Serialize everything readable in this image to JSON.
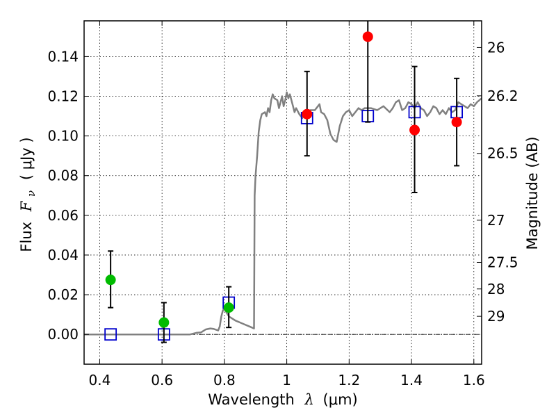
{
  "chart_data": {
    "type": "scatter",
    "xlabel": "Wavelength  λ (μm)",
    "ylabel": "Flux  F_ν  ( μJy )",
    "ylabel_parts": {
      "prefix": "Flux",
      "symbol": "F",
      "subscript": "ν",
      "units": "( μJy )"
    },
    "xlabel_parts": {
      "prefix": "Wavelength",
      "symbol": "λ",
      "units": "(μm)"
    },
    "y2label": "Magnitude (AB)",
    "xlim": [
      0.35,
      1.625
    ],
    "ylim": [
      -0.015,
      0.158
    ],
    "x_ticks": [
      {
        "value": 0.4,
        "label": "0.4"
      },
      {
        "value": 0.6,
        "label": "0.6"
      },
      {
        "value": 0.8,
        "label": "0.8"
      },
      {
        "value": 1.0,
        "label": "1"
      },
      {
        "value": 1.2,
        "label": "1.2"
      },
      {
        "value": 1.4,
        "label": "1.4"
      },
      {
        "value": 1.6,
        "label": "1.6"
      }
    ],
    "y_ticks": [
      {
        "value": 0.0,
        "label": "0.00"
      },
      {
        "value": 0.02,
        "label": "0.02"
      },
      {
        "value": 0.04,
        "label": "0.04"
      },
      {
        "value": 0.06,
        "label": "0.06"
      },
      {
        "value": 0.08,
        "label": "0.08"
      },
      {
        "value": 0.1,
        "label": "0.10"
      },
      {
        "value": 0.12,
        "label": "0.12"
      },
      {
        "value": 0.14,
        "label": "0.14"
      }
    ],
    "y2_ticks": [
      {
        "mag": 26,
        "label": "26"
      },
      {
        "mag": 26.2,
        "label": "26.2"
      },
      {
        "mag": 26.5,
        "label": "26.5"
      },
      {
        "mag": 27,
        "label": "27"
      },
      {
        "mag": 27.5,
        "label": "27.5"
      },
      {
        "mag": 28,
        "label": "28"
      },
      {
        "mag": 29,
        "label": "29"
      }
    ],
    "grid": true,
    "zero_line": true,
    "colors": {
      "sed": "#808080",
      "model": "#0000cc",
      "optical": "#00bb00",
      "nir": "#ff0000",
      "errorbar": "#000000"
    },
    "series": [
      {
        "kind": "line",
        "points": [
          [
            0.35,
            0.0
          ],
          [
            0.65,
            0.0
          ],
          [
            0.69,
            0.0
          ],
          [
            0.71,
            0.0008
          ],
          [
            0.725,
            0.001
          ],
          [
            0.74,
            0.0025
          ],
          [
            0.755,
            0.003
          ],
          [
            0.765,
            0.0028
          ],
          [
            0.78,
            0.002
          ],
          [
            0.785,
            0.004
          ],
          [
            0.79,
            0.009
          ],
          [
            0.795,
            0.012
          ],
          [
            0.8,
            0.013
          ],
          [
            0.807,
            0.011
          ],
          [
            0.815,
            0.009
          ],
          [
            0.825,
            0.008
          ],
          [
            0.835,
            0.007
          ],
          [
            0.85,
            0.006
          ],
          [
            0.865,
            0.005
          ],
          [
            0.88,
            0.004
          ],
          [
            0.895,
            0.003
          ],
          [
            0.897,
            0.07
          ],
          [
            0.9,
            0.08
          ],
          [
            0.905,
            0.09
          ],
          [
            0.91,
            0.102
          ],
          [
            0.915,
            0.108
          ],
          [
            0.92,
            0.111
          ],
          [
            0.93,
            0.112
          ],
          [
            0.935,
            0.11
          ],
          [
            0.94,
            0.114
          ],
          [
            0.945,
            0.112
          ],
          [
            0.95,
            0.118
          ],
          [
            0.955,
            0.121
          ],
          [
            0.96,
            0.119
          ],
          [
            0.97,
            0.118
          ],
          [
            0.975,
            0.114
          ],
          [
            0.98,
            0.117
          ],
          [
            0.985,
            0.12
          ],
          [
            0.99,
            0.115
          ],
          [
            0.995,
            0.118
          ],
          [
            1.0,
            0.122
          ],
          [
            1.005,
            0.119
          ],
          [
            1.01,
            0.121
          ],
          [
            1.02,
            0.115
          ],
          [
            1.025,
            0.112
          ],
          [
            1.03,
            0.114
          ],
          [
            1.04,
            0.111
          ],
          [
            1.05,
            0.109
          ],
          [
            1.06,
            0.112
          ],
          [
            1.075,
            0.113
          ],
          [
            1.09,
            0.113
          ],
          [
            1.1,
            0.115
          ],
          [
            1.105,
            0.116
          ],
          [
            1.11,
            0.112
          ],
          [
            1.12,
            0.111
          ],
          [
            1.13,
            0.108
          ],
          [
            1.14,
            0.101
          ],
          [
            1.15,
            0.098
          ],
          [
            1.16,
            0.097
          ],
          [
            1.17,
            0.105
          ],
          [
            1.18,
            0.11
          ],
          [
            1.19,
            0.112
          ],
          [
            1.2,
            0.113
          ],
          [
            1.21,
            0.11
          ],
          [
            1.22,
            0.112
          ],
          [
            1.23,
            0.114
          ],
          [
            1.24,
            0.113
          ],
          [
            1.25,
            0.114
          ],
          [
            1.27,
            0.114
          ],
          [
            1.29,
            0.113
          ],
          [
            1.31,
            0.115
          ],
          [
            1.33,
            0.112
          ],
          [
            1.34,
            0.114
          ],
          [
            1.35,
            0.117
          ],
          [
            1.36,
            0.118
          ],
          [
            1.37,
            0.113
          ],
          [
            1.38,
            0.114
          ],
          [
            1.39,
            0.117
          ],
          [
            1.4,
            0.116
          ],
          [
            1.41,
            0.114
          ],
          [
            1.42,
            0.117
          ],
          [
            1.43,
            0.114
          ],
          [
            1.44,
            0.113
          ],
          [
            1.45,
            0.11
          ],
          [
            1.46,
            0.112
          ],
          [
            1.47,
            0.115
          ],
          [
            1.48,
            0.114
          ],
          [
            1.49,
            0.111
          ],
          [
            1.5,
            0.113
          ],
          [
            1.51,
            0.111
          ],
          [
            1.52,
            0.114
          ],
          [
            1.53,
            0.112
          ],
          [
            1.54,
            0.113
          ],
          [
            1.55,
            0.117
          ],
          [
            1.56,
            0.116
          ],
          [
            1.58,
            0.114
          ],
          [
            1.59,
            0.116
          ],
          [
            1.6,
            0.115
          ],
          [
            1.61,
            0.117
          ],
          [
            1.625,
            0.119
          ]
        ]
      },
      {
        "kind": "model_squares",
        "points": [
          [
            0.435,
            0.0
          ],
          [
            0.606,
            0.0
          ],
          [
            0.814,
            0.016
          ],
          [
            1.065,
            0.109
          ],
          [
            1.26,
            0.11
          ],
          [
            1.41,
            0.112
          ],
          [
            1.545,
            0.112
          ]
        ]
      },
      {
        "kind": "optical_points",
        "points": [
          {
            "x": 0.435,
            "y": 0.0275,
            "ylo": 0.0135,
            "yhi": 0.042
          },
          {
            "x": 0.606,
            "y": 0.006,
            "ylo": -0.004,
            "yhi": 0.016
          },
          {
            "x": 0.814,
            "y": 0.0135,
            "ylo": 0.0035,
            "yhi": 0.024
          }
        ]
      },
      {
        "kind": "nir_points",
        "points": [
          {
            "x": 1.065,
            "y": 0.111,
            "ylo": 0.09,
            "yhi": 0.1325
          },
          {
            "x": 1.26,
            "y": 0.15,
            "ylo": 0.107,
            "yhi": 0.16
          },
          {
            "x": 1.41,
            "y": 0.103,
            "ylo": 0.0715,
            "yhi": 0.135
          },
          {
            "x": 1.545,
            "y": 0.107,
            "ylo": 0.085,
            "yhi": 0.129
          }
        ]
      }
    ]
  }
}
